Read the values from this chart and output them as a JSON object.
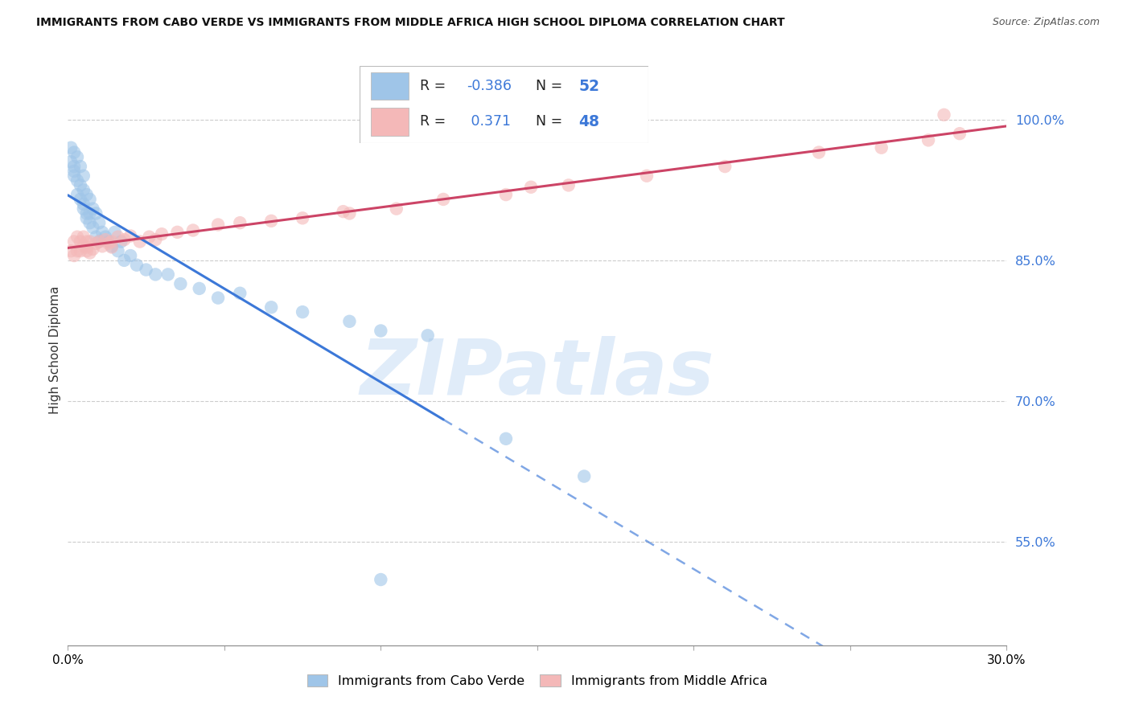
{
  "title": "IMMIGRANTS FROM CABO VERDE VS IMMIGRANTS FROM MIDDLE AFRICA HIGH SCHOOL DIPLOMA CORRELATION CHART",
  "source": "Source: ZipAtlas.com",
  "ylabel": "High School Diploma",
  "xlim": [
    0.0,
    0.3
  ],
  "ylim": [
    0.44,
    1.07
  ],
  "ytick_vals": [
    0.55,
    0.7,
    0.85,
    1.0
  ],
  "ytick_labels": [
    "55.0%",
    "70.0%",
    "85.0%",
    "100.0%"
  ],
  "xtick_vals": [
    0.0,
    0.05,
    0.1,
    0.15,
    0.2,
    0.25,
    0.3
  ],
  "xtick_labels": [
    "0.0%",
    "",
    "",
    "",
    "",
    "",
    "30.0%"
  ],
  "legend_blue_label": "Immigrants from Cabo Verde",
  "legend_pink_label": "Immigrants from Middle Africa",
  "r_blue": -0.386,
  "n_blue": 52,
  "r_pink": 0.371,
  "n_pink": 48,
  "blue_color": "#9fc5e8",
  "pink_color": "#f4b8b8",
  "blue_line_color": "#3c78d8",
  "pink_line_color": "#cc4466",
  "blue_line_solid_end": 0.12,
  "watermark_text": "ZIPatlas",
  "watermark_color": "#c8ddf5",
  "cabo_verde_x": [
    0.001,
    0.001,
    0.002,
    0.002,
    0.002,
    0.002,
    0.003,
    0.003,
    0.003,
    0.004,
    0.004,
    0.004,
    0.005,
    0.005,
    0.005,
    0.005,
    0.006,
    0.006,
    0.006,
    0.007,
    0.007,
    0.007,
    0.008,
    0.008,
    0.009,
    0.009,
    0.01,
    0.01,
    0.011,
    0.012,
    0.013,
    0.014,
    0.015,
    0.016,
    0.017,
    0.018,
    0.02,
    0.022,
    0.025,
    0.028,
    0.032,
    0.036,
    0.042,
    0.048,
    0.055,
    0.065,
    0.075,
    0.09,
    0.1,
    0.115,
    0.14,
    0.165
  ],
  "cabo_verde_y": [
    0.97,
    0.955,
    0.965,
    0.95,
    0.945,
    0.94,
    0.96,
    0.935,
    0.92,
    0.95,
    0.93,
    0.915,
    0.94,
    0.925,
    0.91,
    0.905,
    0.92,
    0.9,
    0.895,
    0.915,
    0.9,
    0.89,
    0.905,
    0.885,
    0.9,
    0.875,
    0.89,
    0.87,
    0.88,
    0.875,
    0.87,
    0.865,
    0.88,
    0.86,
    0.87,
    0.85,
    0.855,
    0.845,
    0.84,
    0.835,
    0.835,
    0.825,
    0.82,
    0.81,
    0.815,
    0.8,
    0.795,
    0.785,
    0.775,
    0.77,
    0.66,
    0.62
  ],
  "cabo_verde_y_outliers": [
    0.51
  ],
  "cabo_verde_x_outliers": [
    0.1
  ],
  "middle_africa_x": [
    0.001,
    0.002,
    0.002,
    0.003,
    0.003,
    0.004,
    0.004,
    0.005,
    0.005,
    0.006,
    0.006,
    0.007,
    0.007,
    0.008,
    0.009,
    0.01,
    0.011,
    0.012,
    0.013,
    0.014,
    0.016,
    0.018,
    0.02,
    0.023,
    0.026,
    0.03,
    0.035,
    0.04,
    0.048,
    0.055,
    0.065,
    0.075,
    0.09,
    0.105,
    0.12,
    0.14,
    0.16,
    0.185,
    0.21,
    0.24,
    0.26,
    0.275,
    0.285,
    0.148,
    0.088,
    0.028,
    0.014,
    0.006
  ],
  "middle_africa_y": [
    0.86,
    0.87,
    0.855,
    0.875,
    0.86,
    0.87,
    0.86,
    0.875,
    0.865,
    0.87,
    0.86,
    0.87,
    0.858,
    0.862,
    0.868,
    0.87,
    0.865,
    0.872,
    0.868,
    0.87,
    0.875,
    0.872,
    0.876,
    0.87,
    0.875,
    0.878,
    0.88,
    0.882,
    0.888,
    0.89,
    0.892,
    0.895,
    0.9,
    0.905,
    0.915,
    0.92,
    0.93,
    0.94,
    0.95,
    0.965,
    0.97,
    0.978,
    0.985,
    0.928,
    0.902,
    0.872,
    0.864,
    0.864
  ],
  "pink_outlier_x": [
    0.28
  ],
  "pink_outlier_y": [
    1.005
  ]
}
